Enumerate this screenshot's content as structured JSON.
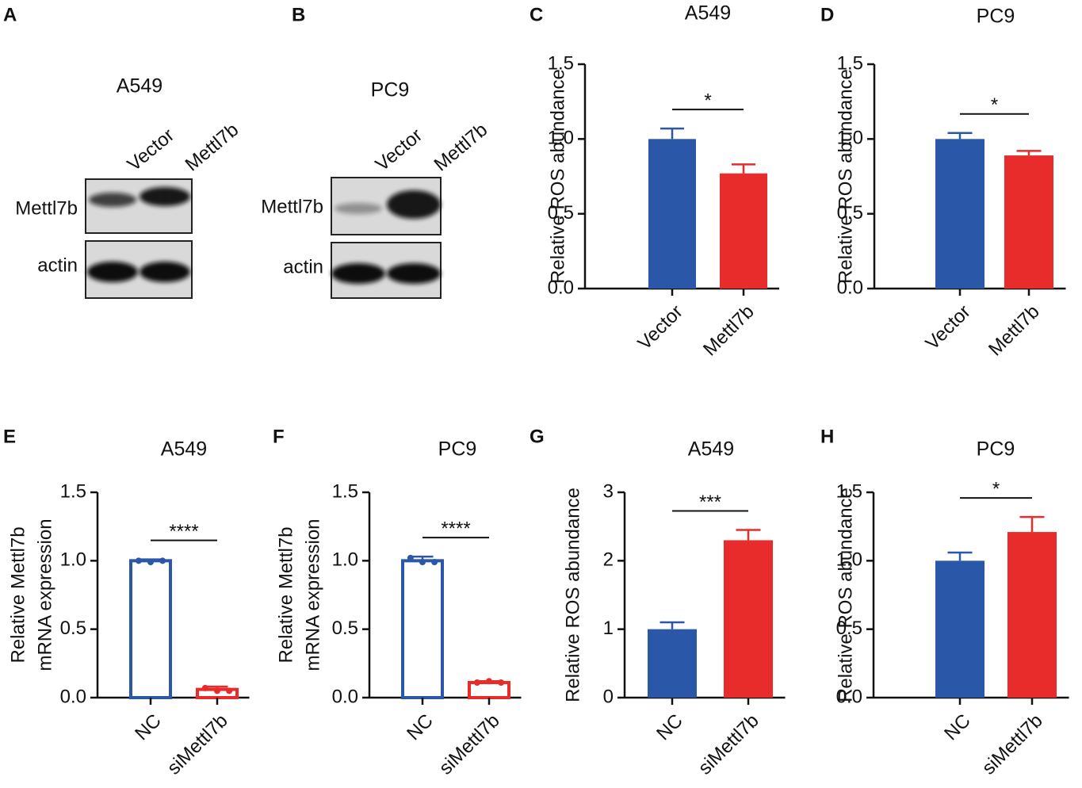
{
  "chart_data": [
    {
      "type": "blot",
      "panel": "A",
      "title": "A549",
      "lanes": [
        "Vector",
        "Mettl7b"
      ],
      "rows": [
        "Mettl7b",
        "actin"
      ]
    },
    {
      "type": "blot",
      "panel": "B",
      "title": "PC9",
      "lanes": [
        "Vector",
        "Mettl7b"
      ],
      "rows": [
        "Mettl7b",
        "actin"
      ]
    },
    {
      "type": "bar",
      "panel": "C",
      "title": "A549",
      "ylabel": [
        "Relative ROS abundance"
      ],
      "categories": [
        "Vector",
        "Mettl7b"
      ],
      "values": [
        1.0,
        0.77
      ],
      "errors": [
        0.07,
        0.06
      ],
      "colors": [
        "#2a57a8",
        "#e82c2c"
      ],
      "fill": "solid",
      "significance": "*",
      "ylim": [
        0,
        1.5
      ],
      "yticks": [
        {
          "value": 0,
          "label": "0.0"
        },
        0.5,
        {
          "value": 1,
          "label": "1.0"
        },
        1.5
      ]
    },
    {
      "type": "bar",
      "panel": "D",
      "title": "PC9",
      "ylabel": [
        "Relative ROS abundance"
      ],
      "categories": [
        "Vector",
        "Mettl7b"
      ],
      "values": [
        1.0,
        0.89
      ],
      "errors": [
        0.04,
        0.03
      ],
      "colors": [
        "#2a57a8",
        "#e82c2c"
      ],
      "fill": "solid",
      "significance": "*",
      "ylim": [
        0,
        1.5
      ],
      "yticks": [
        {
          "value": 0,
          "label": "0.0"
        },
        0.5,
        {
          "value": 1,
          "label": "1.0"
        },
        1.5
      ]
    },
    {
      "type": "bar",
      "panel": "E",
      "title": "A549",
      "ylabel": [
        "Relative  Mettl7b",
        "mRNA expression"
      ],
      "categories": [
        "NC",
        "siMettl7b"
      ],
      "values": [
        1.0,
        0.06
      ],
      "errors": [
        0.01,
        0.02
      ],
      "points": [
        [
          1.0,
          0.99,
          1.0
        ],
        [
          0.07,
          0.05,
          0.05
        ]
      ],
      "colors": [
        "#2a57a8",
        "#e82c2c"
      ],
      "fill": "hollow",
      "significance": "****",
      "ylim": [
        0,
        1.5
      ],
      "yticks": [
        {
          "value": 0,
          "label": "0.0"
        },
        0.5,
        {
          "value": 1,
          "label": "1.0"
        },
        1.5
      ]
    },
    {
      "type": "bar",
      "panel": "F",
      "title": "PC9",
      "ylabel": [
        "Relative  Mettl7b",
        "mRNA expression"
      ],
      "categories": [
        "NC",
        "siMettl7b"
      ],
      "values": [
        1.0,
        0.11
      ],
      "errors": [
        0.03,
        0.01
      ],
      "points": [
        [
          1.02,
          0.99,
          0.99
        ],
        [
          0.11,
          0.12,
          0.11
        ]
      ],
      "colors": [
        "#2a57a8",
        "#e82c2c"
      ],
      "fill": "hollow",
      "significance": "****",
      "ylim": [
        0,
        1.5
      ],
      "yticks": [
        {
          "value": 0,
          "label": "0.0"
        },
        0.5,
        {
          "value": 1,
          "label": "1.0"
        },
        1.5
      ]
    },
    {
      "type": "bar",
      "panel": "G",
      "title": "A549",
      "ylabel": [
        "Relative ROS abundance"
      ],
      "categories": [
        "NC",
        "siMettl7b"
      ],
      "values": [
        1.0,
        2.3
      ],
      "errors": [
        0.1,
        0.15
      ],
      "colors": [
        "#2a57a8",
        "#e82c2c"
      ],
      "fill": "solid",
      "significance": "***",
      "ylim": [
        0,
        3
      ],
      "yticks": [
        0,
        1,
        2,
        3
      ]
    },
    {
      "type": "bar",
      "panel": "H",
      "title": "PC9",
      "ylabel": [
        "Relative ROS abundance"
      ],
      "categories": [
        "NC",
        "siMettl7b"
      ],
      "values": [
        1.0,
        1.21
      ],
      "errors": [
        0.06,
        0.11
      ],
      "colors": [
        "#2a57a8",
        "#e82c2c"
      ],
      "fill": "solid",
      "significance": "*",
      "ylim": [
        0,
        1.5
      ],
      "yticks": [
        {
          "value": 0,
          "label": "0.0"
        },
        0.5,
        {
          "value": 1,
          "label": "1.0"
        },
        1.5
      ]
    }
  ]
}
